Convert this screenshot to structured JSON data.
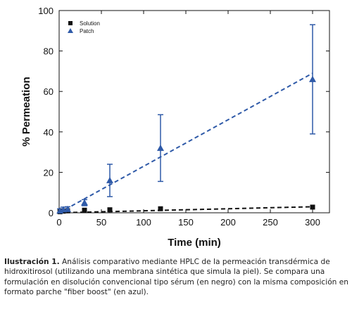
{
  "chart_data": {
    "type": "scatter",
    "xlabel": "Time (min)",
    "ylabel": "% Permeation",
    "xlim": [
      0,
      320
    ],
    "ylim": [
      0,
      100
    ],
    "x_ticks": [
      0,
      50,
      100,
      150,
      200,
      250,
      300
    ],
    "y_ticks": [
      0,
      20,
      40,
      60,
      80,
      100
    ],
    "grid": false,
    "legend_position": "top-left",
    "series": [
      {
        "name": "Solution",
        "marker": "square",
        "color": "#111111",
        "x": [
          1,
          5,
          10,
          30,
          60,
          120,
          300
        ],
        "y": [
          0.5,
          0.8,
          1.0,
          1.3,
          1.5,
          2.0,
          2.8
        ],
        "trend": [
          [
            0,
            0
          ],
          [
            300,
            3.0
          ]
        ]
      },
      {
        "name": "Patch",
        "marker": "triangle",
        "color": "#2f5aa8",
        "x": [
          1,
          5,
          10,
          30,
          60,
          120,
          300
        ],
        "y": [
          1.0,
          1.6,
          1.8,
          5.0,
          16.0,
          32.0,
          66.0
        ],
        "error": [
          1.0,
          1.2,
          1.2,
          1.5,
          8.0,
          16.5,
          27.0
        ],
        "trend": [
          [
            0,
            0
          ],
          [
            300,
            69.0
          ]
        ]
      }
    ]
  },
  "caption": {
    "label": "Ilustración 1.",
    "text": " Análisis comparativo mediante HPLC de la permeación transdérmica de hidroxitirosol (utilizando una membrana sintética que simula la piel). Se compara una formulación en disolución convencional tipo sérum (en negro) con la misma composición en formato parche \"fiber boost\" (en azul)."
  }
}
